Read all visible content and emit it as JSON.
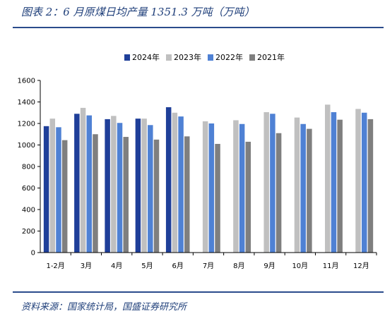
{
  "title": "图表 2：6 月原煤日均产量 1351.3 万吨（万吨）",
  "source": "资料来源：国家统计局，国盛证券研究所",
  "chart_data": {
    "type": "bar",
    "categories": [
      "1-2月",
      "3月",
      "4月",
      "5月",
      "6月",
      "7月",
      "8月",
      "9月",
      "10月",
      "11月",
      "12月"
    ],
    "series": [
      {
        "name": "2024年",
        "color": "#1f3f99",
        "values": [
          1175,
          1290,
          1240,
          1245,
          1351.3,
          null,
          null,
          null,
          null,
          null,
          null
        ]
      },
      {
        "name": "2023年",
        "color": "#c0c0c0",
        "values": [
          1245,
          1345,
          1270,
          1245,
          1300,
          1220,
          1230,
          1305,
          1255,
          1375,
          1335
        ]
      },
      {
        "name": "2022年",
        "color": "#4f81d4",
        "values": [
          1165,
          1275,
          1205,
          1185,
          1265,
          1200,
          1195,
          1290,
          1195,
          1305,
          1300
        ]
      },
      {
        "name": "2021年",
        "color": "#7f7f7f",
        "values": [
          1045,
          1100,
          1075,
          1050,
          1080,
          1010,
          1030,
          1110,
          1150,
          1235,
          1240
        ]
      }
    ],
    "yticks": [
      0,
      200,
      400,
      600,
      800,
      1000,
      1200,
      1400,
      1600
    ],
    "ylim": [
      0,
      1600
    ],
    "legend_position": "top-center"
  }
}
